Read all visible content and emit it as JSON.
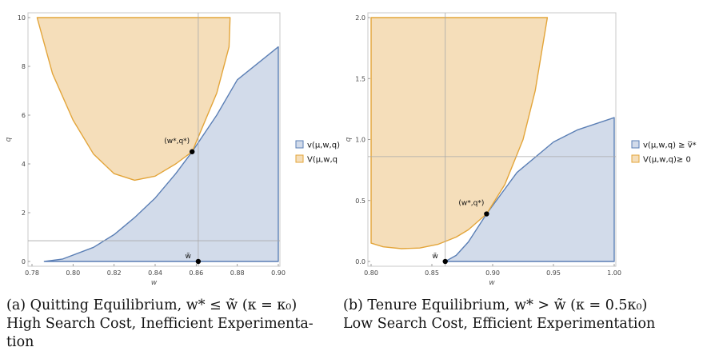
{
  "colors": {
    "blue_fill": "#d2dbea",
    "blue_line": "#5b7fb5",
    "orange_fill": "#f5deba",
    "orange_line": "#e3a53a",
    "ref_line": "#a9a9a9",
    "frame": "#c8c8c8"
  },
  "chart_data": [
    {
      "type": "area",
      "xlabel": "w",
      "ylabel": "q",
      "xlim": [
        0.78,
        0.9
      ],
      "ylim": [
        0,
        10
      ],
      "xticks": [
        "0.78",
        "0.80",
        "0.82",
        "0.84",
        "0.86",
        "0.88",
        "0.90"
      ],
      "yticks": [
        "0",
        "2",
        "4",
        "6",
        "8",
        "10"
      ],
      "ref_lines": {
        "x": 0.861,
        "y": 0.85
      },
      "series": [
        {
          "name": "v(μ,w,q)",
          "color": "blue",
          "upper": [
            [
              0.786,
              0
            ],
            [
              0.795,
              0.1
            ],
            [
              0.81,
              0.58
            ],
            [
              0.82,
              1.1
            ],
            [
              0.83,
              1.8
            ],
            [
              0.84,
              2.6
            ],
            [
              0.85,
              3.6
            ],
            [
              0.858,
              4.5
            ],
            [
              0.87,
              6.0
            ],
            [
              0.88,
              7.45
            ],
            [
              0.9,
              8.8
            ]
          ],
          "lower": [
            [
              0.786,
              0
            ],
            [
              0.9,
              0
            ]
          ]
        },
        {
          "name": "V(μ,w,q",
          "color": "orange",
          "upper": [
            [
              0.7825,
              10
            ],
            [
              0.8295,
              10
            ],
            [
              0.8765,
              10
            ]
          ],
          "lower": [
            [
              0.7825,
              10
            ],
            [
              0.79,
              7.7
            ],
            [
              0.8,
              5.8
            ],
            [
              0.81,
              4.4
            ],
            [
              0.82,
              3.6
            ],
            [
              0.83,
              3.33
            ],
            [
              0.84,
              3.5
            ],
            [
              0.85,
              4.0
            ],
            [
              0.858,
              4.5
            ],
            [
              0.87,
              6.9
            ],
            [
              0.876,
              8.8
            ],
            [
              0.8765,
              10
            ]
          ]
        }
      ],
      "points": [
        {
          "label": "(w*,q*)",
          "x": 0.858,
          "y": 4.5
        },
        {
          "label": "w̃",
          "x": 0.861,
          "y": 0
        }
      ],
      "caption": [
        "(a) Quitting Equilibrium, w* ≤ w̃ (κ = κ₀)",
        "High Search Cost, Inefficient Experimenta-",
        "tion"
      ]
    },
    {
      "type": "area",
      "xlabel": "w",
      "ylabel": "q",
      "xlim": [
        0.8,
        1.0
      ],
      "ylim": [
        0,
        2.0
      ],
      "xticks": [
        "0.80",
        "0.85",
        "0.90",
        "0.95",
        "1.00"
      ],
      "yticks": [
        "0.0",
        "0.5",
        "1.0",
        "1.5",
        "2.0"
      ],
      "ref_lines": {
        "x": 0.861,
        "y": 0.86
      },
      "series": [
        {
          "name": "v(μ,w,q) ≥ v̅*",
          "color": "blue",
          "upper": [
            [
              0.861,
              0
            ],
            [
              0.87,
              0.05
            ],
            [
              0.88,
              0.16
            ],
            [
              0.895,
              0.39
            ],
            [
              0.92,
              0.73
            ],
            [
              0.95,
              0.98
            ],
            [
              0.97,
              1.08
            ],
            [
              1.0,
              1.18
            ]
          ],
          "lower": [
            [
              0.861,
              0
            ],
            [
              1.0,
              0
            ]
          ]
        },
        {
          "name": "V(μ,w,q)≥ 0",
          "color": "orange",
          "upper": [
            [
              0.8,
              2.0
            ],
            [
              0.875,
              2.0
            ],
            [
              0.945,
              2.0
            ]
          ],
          "lower": [
            [
              0.8,
              0.15
            ],
            [
              0.81,
              0.12
            ],
            [
              0.825,
              0.105
            ],
            [
              0.84,
              0.11
            ],
            [
              0.855,
              0.14
            ],
            [
              0.87,
              0.2
            ],
            [
              0.88,
              0.26
            ],
            [
              0.895,
              0.39
            ],
            [
              0.91,
              0.63
            ],
            [
              0.925,
              1.0
            ],
            [
              0.935,
              1.4
            ],
            [
              0.945,
              2.0
            ]
          ]
        }
      ],
      "points": [
        {
          "label": "(w*,q*)",
          "x": 0.895,
          "y": 0.39
        },
        {
          "label": "w̃",
          "x": 0.861,
          "y": 0
        }
      ],
      "caption": [
        "(b) Tenure Equilibrium, w* > w̃ (κ = 0.5κ₀)",
        "Low Search Cost, Efficient Experimentation"
      ]
    }
  ]
}
